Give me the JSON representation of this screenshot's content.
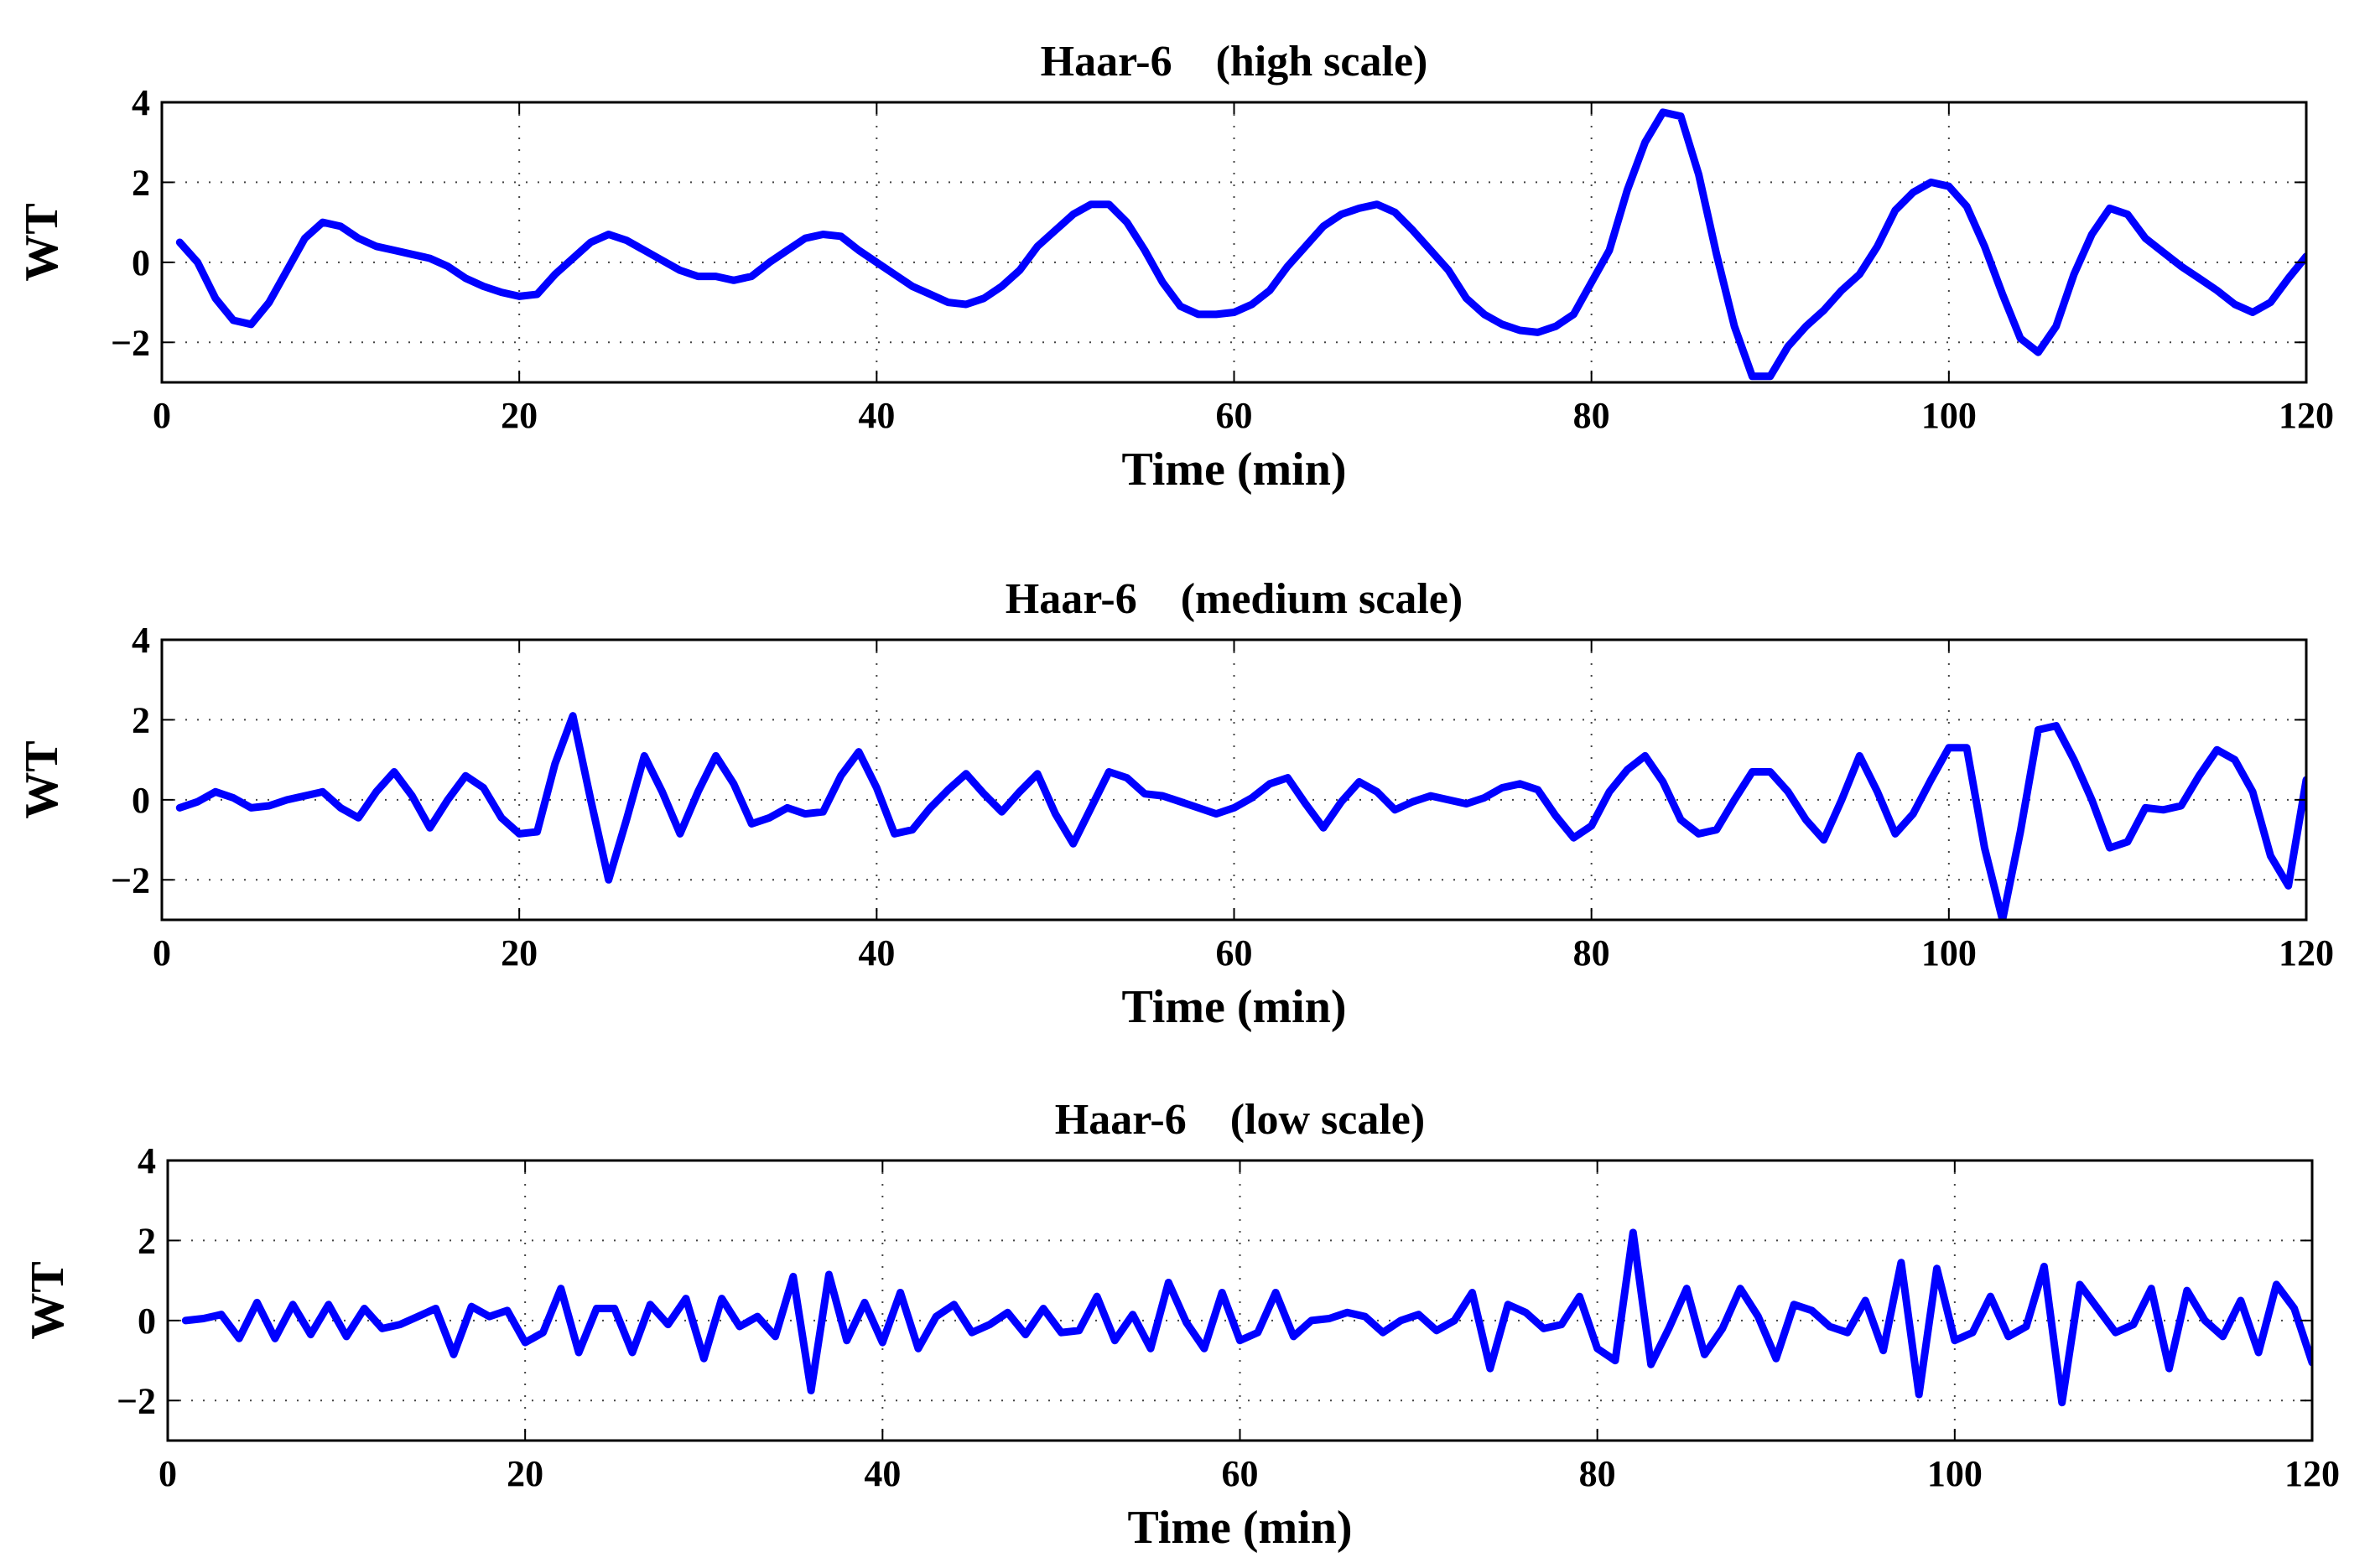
{
  "chart_data": [
    {
      "type": "line",
      "title": "Haar-6    (high scale)",
      "xlabel": "Time (min)",
      "ylabel": "WT",
      "xlim": [
        0,
        120
      ],
      "ylim": [
        -3,
        4
      ],
      "xticks": [
        0,
        20,
        40,
        60,
        80,
        100,
        120
      ],
      "yticks": [
        -2,
        0,
        2,
        4
      ],
      "grid": true,
      "line_color": "#0000ff",
      "series": [
        {
          "name": "WT",
          "x": [
            1,
            2,
            3,
            4,
            5,
            6,
            7,
            8,
            9,
            10,
            11,
            12,
            13,
            14,
            15,
            16,
            17,
            18,
            19,
            20,
            21,
            22,
            23,
            24,
            25,
            26,
            27,
            28,
            29,
            30,
            31,
            32,
            33,
            34,
            35,
            36,
            37,
            38,
            39,
            40,
            41,
            42,
            43,
            44,
            45,
            46,
            47,
            48,
            49,
            50,
            51,
            52,
            53,
            54,
            55,
            56,
            57,
            58,
            59,
            60,
            61,
            62,
            63,
            64,
            65,
            66,
            67,
            68,
            69,
            70,
            71,
            72,
            73,
            74,
            75,
            76,
            77,
            78,
            79,
            80,
            81,
            82,
            83,
            84,
            85,
            86,
            87,
            88,
            89,
            90,
            91,
            92,
            93,
            94,
            95,
            96,
            97,
            98,
            99,
            100,
            101,
            102,
            103,
            104,
            105,
            106,
            107,
            108,
            109,
            110,
            111,
            112,
            113,
            114,
            115,
            116,
            117,
            118,
            119,
            120
          ],
          "values": [
            0.5,
            0.0,
            -0.9,
            -1.45,
            -1.55,
            -1.0,
            -0.2,
            0.6,
            1.0,
            0.9,
            0.6,
            0.4,
            0.3,
            0.2,
            0.1,
            -0.1,
            -0.4,
            -0.6,
            -0.75,
            -0.85,
            -0.8,
            -0.3,
            0.1,
            0.5,
            0.7,
            0.55,
            0.3,
            0.05,
            -0.2,
            -0.35,
            -0.35,
            -0.45,
            -0.35,
            0.0,
            0.3,
            0.6,
            0.7,
            0.65,
            0.3,
            0.0,
            -0.3,
            -0.6,
            -0.8,
            -1.0,
            -1.05,
            -0.9,
            -0.6,
            -0.2,
            0.4,
            0.8,
            1.2,
            1.45,
            1.45,
            1.0,
            0.3,
            -0.5,
            -1.1,
            -1.3,
            -1.3,
            -1.25,
            -1.05,
            -0.7,
            -0.1,
            0.4,
            0.9,
            1.2,
            1.35,
            1.45,
            1.25,
            0.8,
            0.3,
            -0.2,
            -0.9,
            -1.3,
            -1.55,
            -1.7,
            -1.75,
            -1.6,
            -1.3,
            -0.5,
            0.3,
            1.8,
            3.0,
            3.75,
            3.65,
            2.2,
            0.2,
            -1.6,
            -2.85,
            -2.85,
            -2.1,
            -1.6,
            -1.2,
            -0.7,
            -0.3,
            0.4,
            1.3,
            1.75,
            2.0,
            1.9,
            1.4,
            0.4,
            -0.8,
            -1.9,
            -2.25,
            -1.6,
            -0.3,
            0.7,
            1.35,
            1.2,
            0.6,
            0.25,
            -0.1,
            -0.4,
            -0.7,
            -1.05,
            -1.25,
            -1.0,
            -0.4,
            0.15
          ]
        }
      ]
    },
    {
      "type": "line",
      "title": "Haar-6    (medium scale)",
      "xlabel": "Time (min)",
      "ylabel": "WT",
      "xlim": [
        0,
        120
      ],
      "ylim": [
        -3,
        4
      ],
      "xticks": [
        0,
        20,
        40,
        60,
        80,
        100,
        120
      ],
      "yticks": [
        -2,
        0,
        2,
        4
      ],
      "grid": true,
      "line_color": "#0000ff",
      "series": [
        {
          "name": "WT",
          "x": [
            1,
            2,
            3,
            4,
            5,
            6,
            7,
            8,
            9,
            10,
            11,
            12,
            13,
            14,
            15,
            16,
            17,
            18,
            19,
            20,
            21,
            22,
            23,
            24,
            25,
            26,
            27,
            28,
            29,
            30,
            31,
            32,
            33,
            34,
            35,
            36,
            37,
            38,
            39,
            40,
            41,
            42,
            43,
            44,
            45,
            46,
            47,
            48,
            49,
            50,
            51,
            52,
            53,
            54,
            55,
            56,
            57,
            58,
            59,
            60,
            61,
            62,
            63,
            64,
            65,
            66,
            67,
            68,
            69,
            70,
            71,
            72,
            73,
            74,
            75,
            76,
            77,
            78,
            79,
            80,
            81,
            82,
            83,
            84,
            85,
            86,
            87,
            88,
            89,
            90,
            91,
            92,
            93,
            94,
            95,
            96,
            97,
            98,
            99,
            100,
            101,
            102,
            103,
            104,
            105,
            106,
            107,
            108,
            109,
            110,
            111,
            112,
            113,
            114,
            115,
            116,
            117,
            118,
            119,
            120
          ],
          "values": [
            -0.2,
            -0.05,
            0.2,
            0.05,
            -0.2,
            -0.15,
            0.0,
            0.1,
            0.2,
            -0.2,
            -0.45,
            0.2,
            0.7,
            0.1,
            -0.7,
            0.0,
            0.6,
            0.3,
            -0.45,
            -0.85,
            -0.8,
            0.9,
            2.1,
            0.0,
            -2.0,
            -0.5,
            1.1,
            0.2,
            -0.85,
            0.2,
            1.1,
            0.4,
            -0.6,
            -0.45,
            -0.2,
            -0.35,
            -0.3,
            0.6,
            1.2,
            0.3,
            -0.85,
            -0.75,
            -0.2,
            0.25,
            0.65,
            0.15,
            -0.3,
            0.2,
            0.65,
            -0.35,
            -1.1,
            -0.2,
            0.7,
            0.55,
            0.15,
            0.1,
            -0.05,
            -0.2,
            -0.35,
            -0.2,
            0.05,
            0.4,
            0.55,
            -0.1,
            -0.7,
            -0.05,
            0.45,
            0.2,
            -0.25,
            -0.05,
            0.1,
            0.0,
            -0.1,
            0.05,
            0.3,
            0.4,
            0.25,
            -0.4,
            -0.95,
            -0.65,
            0.2,
            0.75,
            1.1,
            0.45,
            -0.5,
            -0.85,
            -0.75,
            0.0,
            0.7,
            0.7,
            0.2,
            -0.5,
            -1.0,
            0.0,
            1.1,
            0.2,
            -0.85,
            -0.35,
            0.5,
            1.3,
            1.3,
            -1.2,
            -3.0,
            -0.8,
            1.75,
            1.85,
            1.0,
            0.0,
            -1.2,
            -1.05,
            -0.2,
            -0.25,
            -0.15,
            0.6,
            1.25,
            1.0,
            0.2,
            -1.4,
            -2.15,
            0.5
          ]
        }
      ]
    },
    {
      "type": "line",
      "title": "Haar-6    (low scale)",
      "xlabel": "Time (min)",
      "ylabel": "WT",
      "xlim": [
        0,
        120
      ],
      "ylim": [
        -3,
        4
      ],
      "xticks": [
        0,
        20,
        40,
        60,
        80,
        100,
        120
      ],
      "yticks": [
        -2,
        0,
        2,
        4
      ],
      "grid": true,
      "line_color": "#0000ff",
      "series": [
        {
          "name": "WT",
          "x": [
            1,
            2,
            3,
            4,
            5,
            6,
            7,
            8,
            9,
            10,
            11,
            12,
            13,
            14,
            15,
            16,
            17,
            18,
            19,
            20,
            21,
            22,
            23,
            24,
            25,
            26,
            27,
            28,
            29,
            30,
            31,
            32,
            33,
            34,
            35,
            36,
            37,
            38,
            39,
            40,
            41,
            42,
            43,
            44,
            45,
            46,
            47,
            48,
            49,
            50,
            51,
            52,
            53,
            54,
            55,
            56,
            57,
            58,
            59,
            60,
            61,
            62,
            63,
            64,
            65,
            66,
            67,
            68,
            69,
            70,
            71,
            72,
            73,
            74,
            75,
            76,
            77,
            78,
            79,
            80,
            81,
            82,
            83,
            84,
            85,
            86,
            87,
            88,
            89,
            90,
            91,
            92,
            93,
            94,
            95,
            96,
            97,
            98,
            99,
            100,
            101,
            102,
            103,
            104,
            105,
            106,
            107,
            108,
            109,
            110,
            111,
            112,
            113,
            114,
            115,
            116,
            117,
            118,
            119,
            120
          ],
          "values": [
            0.0,
            0.05,
            0.15,
            -0.45,
            0.45,
            -0.45,
            0.4,
            -0.35,
            0.4,
            -0.4,
            0.3,
            -0.2,
            -0.1,
            0.1,
            0.3,
            -0.85,
            0.35,
            0.1,
            0.25,
            -0.55,
            -0.3,
            0.8,
            -0.8,
            0.3,
            0.3,
            -0.8,
            0.4,
            -0.1,
            0.55,
            -0.95,
            0.55,
            -0.15,
            0.1,
            -0.4,
            1.1,
            -1.75,
            1.15,
            -0.5,
            0.45,
            -0.55,
            0.7,
            -0.7,
            0.1,
            0.4,
            -0.3,
            -0.1,
            0.2,
            -0.35,
            0.3,
            -0.3,
            -0.25,
            0.6,
            -0.5,
            0.15,
            -0.7,
            0.95,
            -0.05,
            -0.7,
            0.7,
            -0.5,
            -0.3,
            0.7,
            -0.4,
            0.0,
            0.05,
            0.2,
            0.1,
            -0.3,
            0.0,
            0.15,
            -0.25,
            0.0,
            0.7,
            -1.2,
            0.4,
            0.2,
            -0.2,
            -0.1,
            0.6,
            -0.7,
            -1.0,
            2.2,
            -1.1,
            -0.2,
            0.8,
            -0.85,
            -0.2,
            0.8,
            0.1,
            -0.95,
            0.4,
            0.25,
            -0.15,
            -0.3,
            0.5,
            -0.75,
            1.45,
            -1.85,
            1.3,
            -0.5,
            -0.3,
            0.6,
            -0.4,
            -0.15,
            1.35,
            -2.05,
            0.9,
            0.3,
            -0.3,
            -0.1,
            0.8,
            -1.2,
            0.75,
            0.0,
            -0.4,
            0.5,
            -0.8,
            0.9,
            0.3,
            -1.05
          ]
        }
      ]
    }
  ]
}
